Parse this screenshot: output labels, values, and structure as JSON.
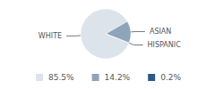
{
  "chart_data": {
    "type": "pie",
    "categories": [
      "WHITE",
      "ASIAN",
      "HISPANIC"
    ],
    "values": [
      85.5,
      14.2,
      0.2
    ],
    "value_labels": [
      "85.5%",
      "14.2%",
      "0.2%"
    ],
    "colors": [
      "#dce3ea",
      "#8ea4b8",
      "#2d5a84"
    ],
    "legend": "bottom"
  }
}
